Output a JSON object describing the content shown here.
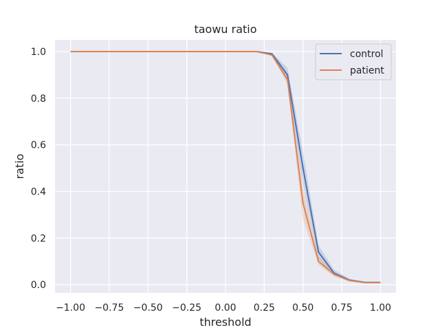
{
  "chart_data": {
    "type": "line",
    "title": "taowu ratio",
    "xlabel": "threshold",
    "ylabel": "ratio",
    "xlim": [
      -1.1,
      1.1
    ],
    "ylim": [
      -0.035,
      1.05
    ],
    "xticks": [
      -1.0,
      -0.75,
      -0.5,
      -0.25,
      0.0,
      0.25,
      0.5,
      0.75,
      1.0
    ],
    "xtick_labels": [
      "−1.00",
      "−0.75",
      "−0.50",
      "−0.25",
      "0.00",
      "0.25",
      "0.50",
      "0.75",
      "1.00"
    ],
    "yticks": [
      0.0,
      0.2,
      0.4,
      0.6,
      0.8,
      1.0
    ],
    "ytick_labels": [
      "0.0",
      "0.2",
      "0.4",
      "0.6",
      "0.8",
      "1.0"
    ],
    "grid": true,
    "legend_position": "top-right",
    "x": [
      -1.0,
      -0.9,
      -0.8,
      -0.7,
      -0.6,
      -0.5,
      -0.4,
      -0.3,
      -0.2,
      -0.1,
      0.0,
      0.1,
      0.2,
      0.3,
      0.4,
      0.5,
      0.6,
      0.7,
      0.8,
      0.9,
      1.0
    ],
    "series": [
      {
        "name": "control",
        "color": "#4c72b0",
        "values": [
          1.0,
          1.0,
          1.0,
          1.0,
          1.0,
          1.0,
          1.0,
          1.0,
          1.0,
          1.0,
          1.0,
          1.0,
          1.0,
          0.99,
          0.9,
          0.5,
          0.14,
          0.05,
          0.02,
          0.01,
          0.01
        ],
        "ci_lower": [
          1.0,
          1.0,
          1.0,
          1.0,
          1.0,
          1.0,
          1.0,
          1.0,
          1.0,
          1.0,
          1.0,
          1.0,
          1.0,
          0.985,
          0.87,
          0.43,
          0.11,
          0.04,
          0.015,
          0.008,
          0.008
        ],
        "ci_upper": [
          1.0,
          1.0,
          1.0,
          1.0,
          1.0,
          1.0,
          1.0,
          1.0,
          1.0,
          1.0,
          1.0,
          1.0,
          1.0,
          0.995,
          0.93,
          0.57,
          0.17,
          0.065,
          0.025,
          0.012,
          0.012
        ]
      },
      {
        "name": "patient",
        "color": "#dd8452",
        "values": [
          1.0,
          1.0,
          1.0,
          1.0,
          1.0,
          1.0,
          1.0,
          1.0,
          1.0,
          1.0,
          1.0,
          1.0,
          1.0,
          0.985,
          0.88,
          0.35,
          0.1,
          0.045,
          0.018,
          0.009,
          0.009
        ],
        "ci_lower": [
          1.0,
          1.0,
          1.0,
          1.0,
          1.0,
          1.0,
          1.0,
          1.0,
          1.0,
          1.0,
          1.0,
          1.0,
          1.0,
          0.98,
          0.86,
          0.28,
          0.085,
          0.035,
          0.014,
          0.007,
          0.007
        ],
        "ci_upper": [
          1.0,
          1.0,
          1.0,
          1.0,
          1.0,
          1.0,
          1.0,
          1.0,
          1.0,
          1.0,
          1.0,
          1.0,
          1.0,
          0.99,
          0.9,
          0.42,
          0.12,
          0.055,
          0.022,
          0.011,
          0.011
        ]
      }
    ]
  },
  "style": {
    "plot_background": "#eaeaf2",
    "grid_color": "#ffffff",
    "text_color": "#262626"
  }
}
